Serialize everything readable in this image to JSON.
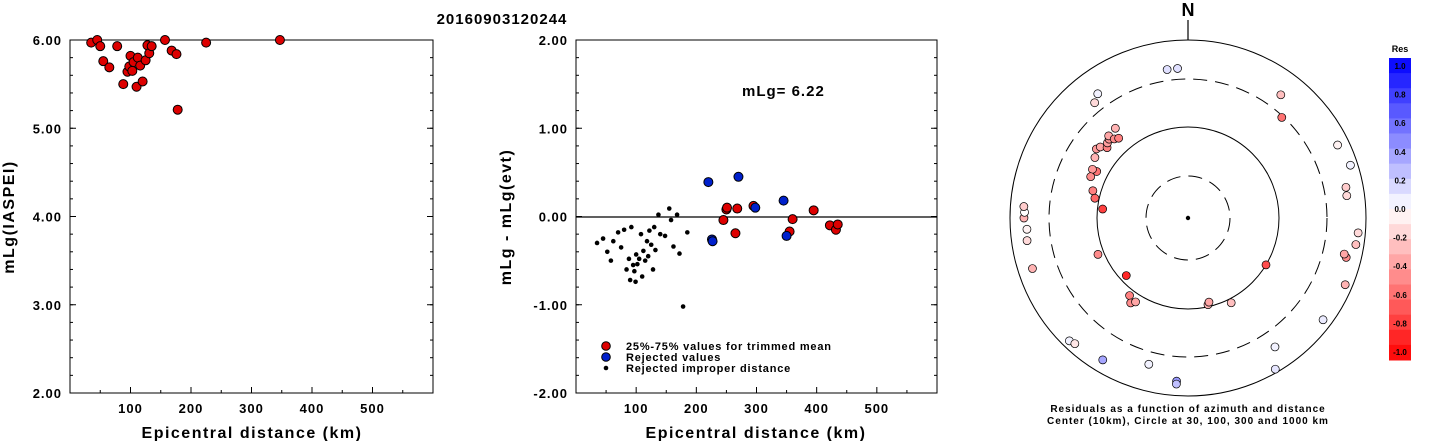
{
  "title": "20160903120244",
  "chart_data": [
    {
      "type": "scatter",
      "name": "left",
      "xlabel": "Epicentral distance (km)",
      "ylabel": "mLg(IASPEI)",
      "xlim": [
        0,
        600
      ],
      "ylim": [
        2.0,
        6.0
      ],
      "xticks": [
        "100",
        "200",
        "300",
        "400",
        "500"
      ],
      "yticks": [
        "2.00",
        "3.00",
        "4.00",
        "5.00",
        "6.00"
      ],
      "points": [
        [
          35,
          5.97
        ],
        [
          45,
          6.0
        ],
        [
          50,
          5.93
        ],
        [
          55,
          5.76
        ],
        [
          65,
          5.69
        ],
        [
          78,
          5.93
        ],
        [
          88,
          5.5
        ],
        [
          95,
          5.64
        ],
        [
          98,
          5.7
        ],
        [
          100,
          5.82
        ],
        [
          103,
          5.65
        ],
        [
          105,
          5.75
        ],
        [
          110,
          5.47
        ],
        [
          112,
          5.8
        ],
        [
          116,
          5.71
        ],
        [
          120,
          5.53
        ],
        [
          125,
          5.77
        ],
        [
          128,
          5.94
        ],
        [
          131,
          5.85
        ],
        [
          135,
          5.93
        ],
        [
          157,
          6.0
        ],
        [
          168,
          5.88
        ],
        [
          176,
          5.84
        ],
        [
          178,
          5.21
        ],
        [
          225,
          5.97
        ],
        [
          347,
          6.02
        ]
      ]
    },
    {
      "type": "scatter",
      "name": "middle",
      "xlabel": "Epicentral distance (km)",
      "ylabel": "mLg - mLg(evt)",
      "xlim": [
        0,
        600
      ],
      "ylim": [
        -2.0,
        2.0
      ],
      "xticks": [
        "100",
        "200",
        "300",
        "400",
        "500"
      ],
      "yticks": [
        "-2.00",
        "-1.00",
        "0.00",
        "1.00",
        "2.00"
      ],
      "annotation": "mLg= 6.22",
      "legend": [
        {
          "label": "25%-75% values for trimmed mean",
          "color": "#dd0000"
        },
        {
          "label": "Rejected values",
          "color": "#0020cc"
        },
        {
          "label": "Rejected improper distance",
          "color": "#000000"
        }
      ],
      "series": [
        {
          "kind": "trimmed",
          "color": "#dd0000",
          "points": [
            [
              245,
              -0.04
            ],
            [
              250,
              0.08
            ],
            [
              251,
              0.1
            ],
            [
              265,
              -0.19
            ],
            [
              268,
              0.09
            ],
            [
              295,
              0.12
            ],
            [
              355,
              -0.17
            ],
            [
              360,
              -0.03
            ],
            [
              395,
              0.07
            ],
            [
              422,
              -0.1
            ],
            [
              432,
              -0.15
            ],
            [
              435,
              -0.09
            ]
          ]
        },
        {
          "kind": "rejected",
          "color": "#0020cc",
          "points": [
            [
              220,
              0.39
            ],
            [
              226,
              -0.26
            ],
            [
              227,
              -0.28
            ],
            [
              270,
              0.45
            ],
            [
              298,
              0.1
            ],
            [
              345,
              0.18
            ],
            [
              350,
              -0.22
            ]
          ]
        },
        {
          "kind": "improper-distance",
          "color": "#000000",
          "points": [
            [
              35,
              -0.3
            ],
            [
              45,
              -0.25
            ],
            [
              52,
              -0.4
            ],
            [
              58,
              -0.5
            ],
            [
              62,
              -0.28
            ],
            [
              70,
              -0.18
            ],
            [
              75,
              -0.35
            ],
            [
              80,
              -0.15
            ],
            [
              84,
              -0.6
            ],
            [
              88,
              -0.48
            ],
            [
              90,
              -0.72
            ],
            [
              92,
              -0.12
            ],
            [
              95,
              -0.55
            ],
            [
              97,
              -0.62
            ],
            [
              99,
              -0.74
            ],
            [
              100,
              -0.43
            ],
            [
              102,
              -0.54
            ],
            [
              105,
              -0.48
            ],
            [
              108,
              -0.2
            ],
            [
              110,
              -0.68
            ],
            [
              112,
              -0.39
            ],
            [
              115,
              -0.5
            ],
            [
              118,
              -0.28
            ],
            [
              120,
              -0.45
            ],
            [
              122,
              -0.16
            ],
            [
              125,
              -0.32
            ],
            [
              128,
              -0.6
            ],
            [
              130,
              -0.12
            ],
            [
              132,
              -0.38
            ],
            [
              137,
              0.02
            ],
            [
              140,
              -0.2
            ],
            [
              148,
              -0.22
            ],
            [
              155,
              0.09
            ],
            [
              158,
              -0.04
            ],
            [
              162,
              -0.34
            ],
            [
              168,
              0.02
            ],
            [
              172,
              -0.42
            ],
            [
              178,
              -1.02
            ],
            [
              185,
              -0.18
            ]
          ]
        }
      ]
    },
    {
      "type": "polar",
      "name": "right",
      "north_label": "N",
      "caption_line1": "Residuals as a function of azimuth and distance",
      "caption_line2": "Center (10km), Circle at 30, 100, 300 and 1000 km",
      "colorbar_title": "Res",
      "colorbar_ticks": [
        "1.0",
        "0.8",
        "0.6",
        "0.4",
        "0.2",
        "0.0",
        "-0.2",
        "-0.4",
        "-0.6",
        "-0.8",
        "-1.0"
      ],
      "distance_circles_km": [
        30,
        100,
        300,
        1000
      ],
      "points": [
        {
          "az": 352,
          "dist": 420,
          "res": 0.12
        },
        {
          "az": 356,
          "dist": 420,
          "res": 0.12
        },
        {
          "az": 324,
          "dist": 470,
          "res": 0.05
        },
        {
          "az": 303,
          "dist": 158,
          "res": -0.3
        },
        {
          "az": 307,
          "dist": 172,
          "res": -0.4
        },
        {
          "az": 309,
          "dist": 165,
          "res": -0.35
        },
        {
          "az": 311,
          "dist": 145,
          "res": -0.5
        },
        {
          "az": 313,
          "dist": 155,
          "res": -0.38
        },
        {
          "az": 315,
          "dist": 160,
          "res": -0.42
        },
        {
          "az": 316,
          "dist": 170,
          "res": -0.35
        },
        {
          "az": 317,
          "dist": 148,
          "res": -0.45
        },
        {
          "az": 319,
          "dist": 140,
          "res": -0.5
        },
        {
          "az": 321,
          "dist": 175,
          "res": -0.3
        },
        {
          "az": 321,
          "dist": 400,
          "res": -0.15
        },
        {
          "az": 297,
          "dist": 130,
          "res": -0.55
        },
        {
          "az": 297,
          "dist": 145,
          "res": -0.4
        },
        {
          "az": 293,
          "dist": 140,
          "res": -0.45
        },
        {
          "az": 286,
          "dist": 120,
          "res": -0.5
        },
        {
          "az": 282,
          "dist": 110,
          "res": -0.6
        },
        {
          "az": 276,
          "dist": 88,
          "res": -0.75
        },
        {
          "az": 270,
          "dist": 650,
          "res": -0.3
        },
        {
          "az": 272,
          "dist": 640,
          "res": 0.0
        },
        {
          "az": 274,
          "dist": 660,
          "res": -0.2
        },
        {
          "az": 266,
          "dist": 600,
          "res": -0.05
        },
        {
          "az": 262,
          "dist": 620,
          "res": -0.15
        },
        {
          "az": 252,
          "dist": 640,
          "res": -0.3
        },
        {
          "az": 248,
          "dist": 115,
          "res": -0.45
        },
        {
          "az": 227,
          "dist": 85,
          "res": -0.85
        },
        {
          "az": 217,
          "dist": 115,
          "res": -0.5
        },
        {
          "az": 214,
          "dist": 130,
          "res": -0.45
        },
        {
          "az": 212,
          "dist": 120,
          "res": -0.35
        },
        {
          "az": 224,
          "dist": 800,
          "res": 0.05
        },
        {
          "az": 222,
          "dist": 760,
          "res": -0.1
        },
        {
          "az": 211,
          "dist": 680,
          "res": 0.35
        },
        {
          "az": 195,
          "dist": 440,
          "res": 0.05
        },
        {
          "az": 184,
          "dist": 640,
          "res": 0.4
        },
        {
          "az": 184,
          "dist": 700,
          "res": 0.25
        },
        {
          "az": 150,
          "dist": 900,
          "res": 0.1
        },
        {
          "az": 146,
          "dist": 500,
          "res": 0.05
        },
        {
          "az": 167,
          "dist": 95,
          "res": -0.3
        },
        {
          "az": 166,
          "dist": 90,
          "res": -0.35
        },
        {
          "az": 153,
          "dist": 110,
          "res": -0.25
        },
        {
          "az": 127,
          "dist": 760,
          "res": 0.08
        },
        {
          "az": 121,
          "dist": 100,
          "res": -0.7
        },
        {
          "az": 113,
          "dist": 800,
          "res": -0.3
        },
        {
          "az": 104,
          "dist": 630,
          "res": -0.45
        },
        {
          "az": 103,
          "dist": 580,
          "res": -0.35
        },
        {
          "az": 99,
          "dist": 780,
          "res": -0.25
        },
        {
          "az": 95,
          "dist": 800,
          "res": -0.15
        },
        {
          "az": 82,
          "dist": 580,
          "res": -0.15
        },
        {
          "az": 79,
          "dist": 590,
          "res": -0.2
        },
        {
          "az": 64,
          "dist": 700,
          "res": -0.05
        },
        {
          "az": 72,
          "dist": 800,
          "res": 0.05
        },
        {
          "az": 43,
          "dist": 290,
          "res": -0.55
        },
        {
          "az": 37,
          "dist": 480,
          "res": -0.25
        }
      ]
    }
  ]
}
